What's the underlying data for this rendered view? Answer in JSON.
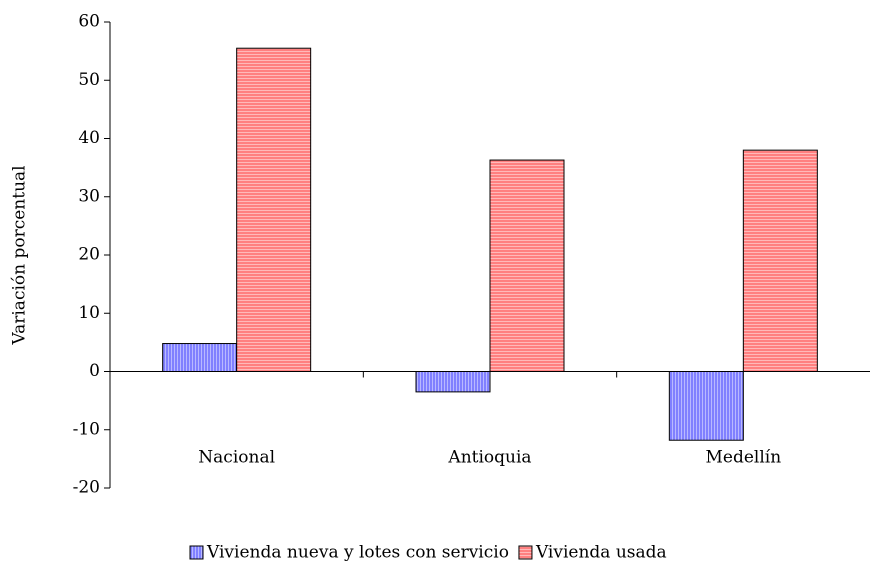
{
  "chart_data": {
    "type": "bar",
    "y_label": "Variación porcentual",
    "categories": [
      "Nacional",
      "Antioquia",
      "Medellín"
    ],
    "series": [
      {
        "name": "Vivienda nueva y lotes con servicio",
        "color": "#8080ff",
        "values": [
          4.8,
          -3.5,
          -11.8
        ]
      },
      {
        "name": "Vivienda usada",
        "color": "#ff8080",
        "values": [
          55.5,
          36.3,
          38.0
        ]
      }
    ],
    "ylim": [
      -20,
      60
    ],
    "yticks": [
      -20,
      -10,
      0,
      10,
      20,
      30,
      40,
      50,
      60
    ],
    "legend": "bottom"
  }
}
